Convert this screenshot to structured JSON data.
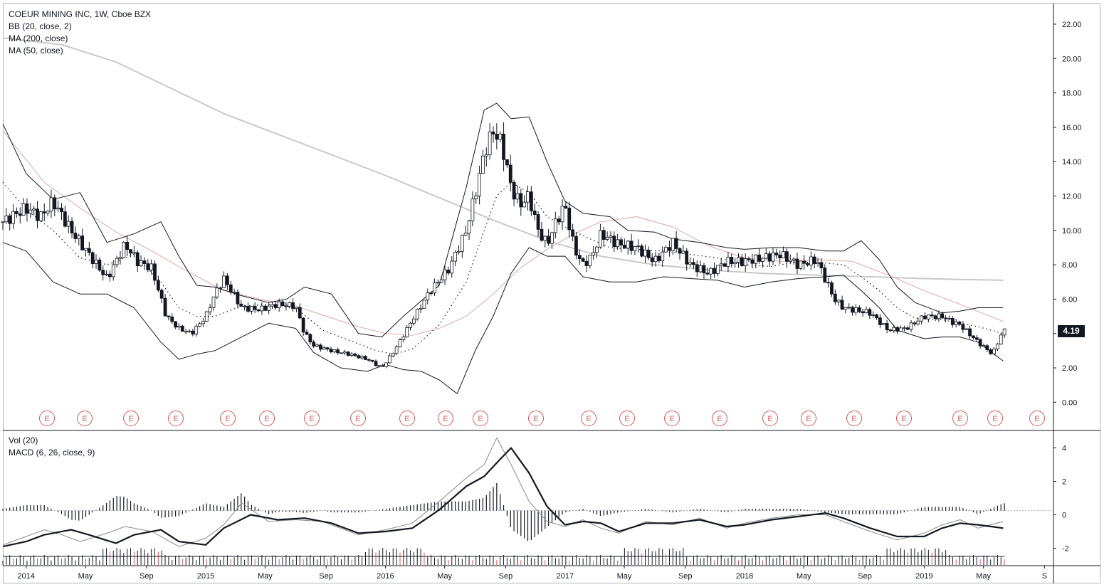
{
  "legend_main": {
    "symbol": "COEUR MINING INC, 1W, Cboe BZX",
    "bb": "BB (20, close, 2)",
    "ma200": "MA (200, close)",
    "ma50": "MA (50, close)"
  },
  "legend_lower": {
    "vol": "Vol (20)",
    "macd": "MACD (6, 26, close, 9)"
  },
  "last_price": "4.19",
  "earnings_marker": "E",
  "colors": {
    "candle": "#131722",
    "bb": "#131722",
    "ma200": "#c9c9c9",
    "ma50": "#e3b7b7",
    "macd": "#131722",
    "signal": "#8a8a8a",
    "volume": "#131722",
    "volume_up": "#d45b5b",
    "earnings": "#d45b5b"
  },
  "chart_data": [
    {
      "type": "line",
      "title": "COEUR MINING INC, 1W, Cboe BZX",
      "y_ticks": [
        "22.00",
        "20.00",
        "18.00",
        "16.00",
        "14.00",
        "12.00",
        "10.00",
        "8.00",
        "6.00",
        "4.00",
        "2.00",
        "0.00"
      ],
      "ylim": [
        -1.6,
        23.2
      ],
      "x_ticks": [
        "2014",
        "May",
        "Sep",
        "2015",
        "May",
        "Sep",
        "2016",
        "May",
        "Sep",
        "2017",
        "May",
        "Sep",
        "2018",
        "May",
        "Sep",
        "2019",
        "May",
        "S"
      ],
      "x_tick_t": [
        2014.0,
        2014.33,
        2014.67,
        2015.0,
        2015.33,
        2015.67,
        2016.0,
        2016.33,
        2016.67,
        2017.0,
        2017.33,
        2017.67,
        2018.0,
        2018.33,
        2018.67,
        2019.0,
        2019.33,
        2019.67
      ],
      "xlim": [
        2013.87,
        2019.72
      ],
      "series": [
        {
          "name": "Price",
          "t": [
            2013.87,
            2013.95,
            2014.0,
            2014.08,
            2014.15,
            2014.25,
            2014.35,
            2014.45,
            2014.55,
            2014.62,
            2014.7,
            2014.78,
            2014.85,
            2014.92,
            2015.0,
            2015.05,
            2015.1,
            2015.2,
            2015.3,
            2015.4,
            2015.5,
            2015.55,
            2015.6,
            2015.7,
            2015.8,
            2015.9,
            2015.98,
            2016.05,
            2016.15,
            2016.25,
            2016.35,
            2016.45,
            2016.52,
            2016.55,
            2016.6,
            2016.65,
            2016.7,
            2016.75,
            2016.8,
            2016.85,
            2016.9,
            2016.95,
            2017.0,
            2017.05,
            2017.1,
            2017.15,
            2017.2,
            2017.3,
            2017.4,
            2017.5,
            2017.6,
            2017.7,
            2017.8,
            2017.9,
            2018.0,
            2018.1,
            2018.2,
            2018.3,
            2018.4,
            2018.5,
            2018.55,
            2018.6,
            2018.7,
            2018.8,
            2018.9,
            2019.0,
            2019.1,
            2019.15,
            2019.2,
            2019.3,
            2019.38,
            2019.44
          ],
          "values": [
            10.5,
            11.0,
            11.3,
            10.8,
            11.7,
            10.0,
            8.6,
            7.2,
            9.2,
            8.2,
            7.8,
            5.0,
            4.3,
            4.0,
            5.0,
            6.3,
            7.2,
            5.5,
            5.4,
            5.7,
            5.6,
            4.0,
            3.3,
            3.0,
            2.8,
            2.5,
            2.0,
            3.0,
            4.8,
            6.5,
            7.7,
            10.0,
            13.0,
            14.5,
            15.8,
            15.0,
            12.5,
            11.5,
            12.0,
            10.0,
            9.2,
            10.5,
            11.5,
            9.0,
            8.0,
            8.5,
            9.8,
            9.2,
            9.0,
            8.2,
            9.3,
            8.0,
            7.5,
            8.2,
            8.2,
            8.4,
            8.6,
            8.0,
            8.3,
            6.0,
            5.5,
            5.4,
            5.2,
            4.2,
            4.3,
            5.0,
            5.0,
            4.7,
            4.5,
            3.5,
            2.8,
            4.19
          ]
        },
        {
          "name": "BB upper",
          "t": [
            2013.87,
            2014.0,
            2014.15,
            2014.3,
            2014.45,
            2014.6,
            2014.75,
            2014.85,
            2014.95,
            2015.05,
            2015.2,
            2015.35,
            2015.45,
            2015.55,
            2015.7,
            2015.85,
            2015.98,
            2016.1,
            2016.3,
            2016.45,
            2016.55,
            2016.62,
            2016.7,
            2016.8,
            2016.9,
            2017.0,
            2017.1,
            2017.25,
            2017.35,
            2017.5,
            2017.6,
            2017.75,
            2017.9,
            2018.0,
            2018.15,
            2018.3,
            2018.45,
            2018.55,
            2018.65,
            2018.75,
            2018.85,
            2018.95,
            2019.1,
            2019.2,
            2019.3,
            2019.44
          ],
          "values": [
            16.2,
            13.3,
            11.8,
            12.2,
            9.3,
            9.8,
            10.5,
            8.5,
            6.8,
            6.7,
            6.2,
            5.8,
            6.0,
            6.7,
            6.3,
            4.0,
            3.8,
            5.0,
            6.8,
            12.5,
            17.0,
            17.4,
            16.5,
            16.6,
            14.0,
            11.7,
            11.0,
            10.8,
            10.0,
            9.9,
            9.5,
            9.3,
            9.0,
            8.9,
            9.0,
            9.0,
            8.8,
            8.8,
            9.4,
            8.3,
            6.7,
            5.8,
            5.2,
            5.3,
            5.5,
            5.5
          ]
        },
        {
          "name": "BB middle",
          "t": [
            2013.87,
            2014.0,
            2014.15,
            2014.3,
            2014.45,
            2014.6,
            2014.75,
            2014.85,
            2014.95,
            2015.05,
            2015.2,
            2015.35,
            2015.5,
            2015.65,
            2015.8,
            2015.95,
            2016.05,
            2016.15,
            2016.3,
            2016.45,
            2016.55,
            2016.62,
            2016.7,
            2016.8,
            2016.9,
            2017.0,
            2017.1,
            2017.25,
            2017.4,
            2017.55,
            2017.7,
            2017.85,
            2018.0,
            2018.15,
            2018.3,
            2018.45,
            2018.55,
            2018.65,
            2018.75,
            2018.85,
            2018.95,
            2019.1,
            2019.2,
            2019.3,
            2019.44
          ],
          "values": [
            12.8,
            11.2,
            10.0,
            8.4,
            8.0,
            8.6,
            7.0,
            5.5,
            5.0,
            5.0,
            5.6,
            5.7,
            5.5,
            4.2,
            3.6,
            3.0,
            2.8,
            3.1,
            4.5,
            7.0,
            10.0,
            12.0,
            12.8,
            12.2,
            10.8,
            10.2,
            9.7,
            9.0,
            8.9,
            8.8,
            8.6,
            8.4,
            8.0,
            7.9,
            8.2,
            8.1,
            8.0,
            7.3,
            6.5,
            5.5,
            4.9,
            4.8,
            4.6,
            4.4,
            4.0
          ]
        },
        {
          "name": "BB lower",
          "t": [
            2013.87,
            2014.0,
            2014.15,
            2014.3,
            2014.45,
            2014.6,
            2014.75,
            2014.85,
            2014.95,
            2015.05,
            2015.2,
            2015.35,
            2015.5,
            2015.6,
            2015.75,
            2015.9,
            2016.0,
            2016.1,
            2016.2,
            2016.3,
            2016.4,
            2016.5,
            2016.6,
            2016.7,
            2016.8,
            2016.9,
            2017.0,
            2017.1,
            2017.25,
            2017.4,
            2017.55,
            2017.7,
            2017.85,
            2018.0,
            2018.15,
            2018.3,
            2018.45,
            2018.55,
            2018.65,
            2018.75,
            2018.85,
            2019.0,
            2019.1,
            2019.2,
            2019.3,
            2019.44
          ],
          "values": [
            9.3,
            8.8,
            7.0,
            6.3,
            6.3,
            5.5,
            3.5,
            2.5,
            2.8,
            3.0,
            3.8,
            4.6,
            4.3,
            2.9,
            2.0,
            1.8,
            2.2,
            1.9,
            1.8,
            1.3,
            0.5,
            3.0,
            5.0,
            7.5,
            9.0,
            8.5,
            8.5,
            7.3,
            7.0,
            7.0,
            7.3,
            7.2,
            7.1,
            6.7,
            7.0,
            7.2,
            7.3,
            7.4,
            6.5,
            5.5,
            4.2,
            3.7,
            3.8,
            3.8,
            3.5,
            2.4
          ]
        },
        {
          "name": "MA 200",
          "t": [
            2013.87,
            2014.2,
            2014.5,
            2014.8,
            2015.1,
            2015.4,
            2015.7,
            2016.0,
            2016.3,
            2016.6,
            2016.9,
            2017.2,
            2017.5,
            2017.8,
            2018.1,
            2018.4,
            2018.7,
            2019.0,
            2019.2,
            2019.44
          ],
          "values": [
            21.2,
            20.8,
            19.8,
            18.3,
            16.8,
            15.6,
            14.4,
            13.2,
            11.9,
            10.6,
            9.4,
            8.5,
            8.0,
            7.7,
            7.5,
            7.4,
            7.3,
            7.2,
            7.15,
            7.1
          ]
        },
        {
          "name": "MA 50",
          "t": [
            2013.87,
            2014.1,
            2014.3,
            2014.5,
            2014.7,
            2014.9,
            2015.1,
            2015.3,
            2015.5,
            2015.7,
            2015.85,
            2016.0,
            2016.15,
            2016.3,
            2016.45,
            2016.6,
            2016.75,
            2016.9,
            2017.05,
            2017.2,
            2017.4,
            2017.6,
            2017.8,
            2018.0,
            2018.2,
            2018.4,
            2018.6,
            2018.8,
            2019.0,
            2019.2,
            2019.44
          ],
          "values": [
            15.8,
            12.8,
            11.3,
            9.9,
            8.8,
            7.6,
            6.5,
            6.0,
            5.6,
            4.9,
            4.4,
            4.0,
            3.9,
            4.3,
            5.0,
            6.3,
            7.8,
            8.9,
            9.8,
            10.5,
            10.8,
            10.2,
            9.1,
            8.4,
            8.2,
            8.3,
            8.2,
            7.4,
            6.5,
            5.7,
            4.7
          ]
        }
      ]
    },
    {
      "type": "line",
      "title": "MACD (6, 26, close, 9)",
      "y_ticks": [
        "4",
        "2",
        "0",
        "-2"
      ],
      "ylim": [
        -3.0,
        5.0
      ],
      "series": [
        {
          "name": "MACD",
          "t": [
            2013.87,
            2014.0,
            2014.1,
            2014.25,
            2014.35,
            2014.5,
            2014.6,
            2014.75,
            2014.85,
            2015.0,
            2015.1,
            2015.25,
            2015.4,
            2015.55,
            2015.7,
            2015.85,
            2016.0,
            2016.15,
            2016.3,
            2016.45,
            2016.55,
            2016.62,
            2016.7,
            2016.8,
            2016.9,
            2017.0,
            2017.1,
            2017.2,
            2017.3,
            2017.45,
            2017.6,
            2017.75,
            2017.9,
            2018.0,
            2018.15,
            2018.3,
            2018.45,
            2018.55,
            2018.7,
            2018.85,
            2019.0,
            2019.1,
            2019.2,
            2019.3,
            2019.44
          ],
          "values": [
            -1.9,
            -1.6,
            -1.2,
            -0.9,
            -1.2,
            -1.7,
            -1.2,
            -0.9,
            -1.6,
            -1.8,
            -0.8,
            0.0,
            -0.3,
            -0.2,
            -0.5,
            -1.1,
            -1.0,
            -0.8,
            0.3,
            1.7,
            2.3,
            3.1,
            4.0,
            2.5,
            0.5,
            -0.6,
            -0.4,
            -0.5,
            -1.0,
            -0.5,
            -0.5,
            -0.3,
            -0.7,
            -0.6,
            -0.3,
            -0.1,
            0.1,
            -0.2,
            -0.8,
            -1.3,
            -1.3,
            -0.8,
            -0.5,
            -0.6,
            -0.8
          ]
        },
        {
          "name": "Signal",
          "t": [
            2013.87,
            2014.0,
            2014.1,
            2014.2,
            2014.3,
            2014.45,
            2014.55,
            2014.7,
            2014.85,
            2015.0,
            2015.1,
            2015.2,
            2015.35,
            2015.5,
            2015.65,
            2015.85,
            2016.0,
            2016.15,
            2016.3,
            2016.45,
            2016.55,
            2016.62,
            2016.7,
            2016.8,
            2016.9,
            2017.0,
            2017.1,
            2017.2,
            2017.3,
            2017.45,
            2017.6,
            2017.75,
            2017.9,
            2018.0,
            2018.15,
            2018.3,
            2018.45,
            2018.55,
            2018.7,
            2018.85,
            2019.0,
            2019.1,
            2019.2,
            2019.3,
            2019.44
          ],
          "values": [
            -1.8,
            -1.3,
            -0.9,
            -1.2,
            -1.6,
            -1.1,
            -0.7,
            -1.0,
            -1.9,
            -1.4,
            -0.6,
            0.7,
            -0.4,
            -0.3,
            -0.4,
            -1.2,
            -0.9,
            -0.5,
            0.8,
            2.2,
            3.0,
            4.6,
            3.0,
            0.8,
            -0.4,
            -0.7,
            -0.3,
            -0.8,
            -1.1,
            -0.4,
            -0.6,
            -0.2,
            -0.8,
            -0.5,
            -0.2,
            0.0,
            0.0,
            -0.4,
            -1.0,
            -1.5,
            -1.1,
            -0.6,
            -0.3,
            -0.8,
            -0.4
          ]
        }
      ]
    }
  ]
}
